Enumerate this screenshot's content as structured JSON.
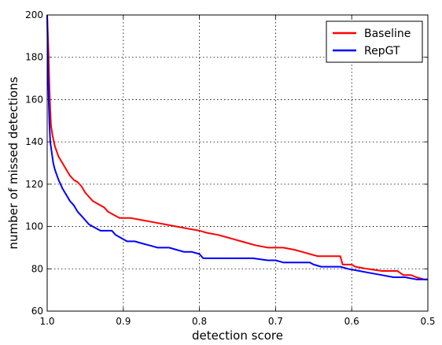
{
  "chart_data": {
    "type": "line",
    "title": "",
    "xlabel": "detection score",
    "ylabel": "number of missed detections",
    "xlim": [
      1.0,
      0.5
    ],
    "ylim": [
      60,
      200
    ],
    "x_reversed": true,
    "grid": true,
    "legend_position": "top-right",
    "xticks": [
      "1.0",
      "0.9",
      "0.8",
      "0.7",
      "0.6",
      "0.5"
    ],
    "xtick_values": [
      1.0,
      0.9,
      0.8,
      0.7,
      0.6,
      0.5
    ],
    "yticks": [
      "60",
      "80",
      "100",
      "120",
      "140",
      "160",
      "180",
      "200"
    ],
    "ytick_values": [
      60,
      80,
      100,
      120,
      140,
      160,
      180,
      200
    ],
    "series": [
      {
        "name": "Baseline",
        "color": "#ff0000",
        "points": [
          [
            1.0,
            200
          ],
          [
            0.998,
            180
          ],
          [
            0.997,
            165
          ],
          [
            0.996,
            155
          ],
          [
            0.995,
            148
          ],
          [
            0.993,
            143
          ],
          [
            0.99,
            138
          ],
          [
            0.985,
            133
          ],
          [
            0.98,
            130
          ],
          [
            0.975,
            127
          ],
          [
            0.97,
            124
          ],
          [
            0.965,
            122
          ],
          [
            0.96,
            121
          ],
          [
            0.955,
            119
          ],
          [
            0.95,
            116
          ],
          [
            0.945,
            114
          ],
          [
            0.94,
            112
          ],
          [
            0.935,
            111
          ],
          [
            0.93,
            110
          ],
          [
            0.925,
            109
          ],
          [
            0.92,
            107
          ],
          [
            0.915,
            106
          ],
          [
            0.91,
            105
          ],
          [
            0.905,
            104
          ],
          [
            0.89,
            104
          ],
          [
            0.875,
            103
          ],
          [
            0.86,
            102
          ],
          [
            0.845,
            101
          ],
          [
            0.83,
            100
          ],
          [
            0.815,
            99
          ],
          [
            0.8,
            98
          ],
          [
            0.79,
            97
          ],
          [
            0.775,
            96
          ],
          [
            0.765,
            95
          ],
          [
            0.755,
            94
          ],
          [
            0.745,
            93
          ],
          [
            0.735,
            92
          ],
          [
            0.725,
            91
          ],
          [
            0.71,
            90
          ],
          [
            0.69,
            90
          ],
          [
            0.675,
            89
          ],
          [
            0.665,
            88
          ],
          [
            0.655,
            87
          ],
          [
            0.645,
            86
          ],
          [
            0.63,
            86
          ],
          [
            0.615,
            86
          ],
          [
            0.612,
            82
          ],
          [
            0.6,
            82
          ],
          [
            0.595,
            81
          ],
          [
            0.58,
            80
          ],
          [
            0.56,
            79
          ],
          [
            0.54,
            79
          ],
          [
            0.532,
            77
          ],
          [
            0.522,
            77
          ],
          [
            0.515,
            76
          ],
          [
            0.505,
            75
          ],
          [
            0.5,
            75
          ]
        ]
      },
      {
        "name": "RepGT",
        "color": "#0000ff",
        "points": [
          [
            1.0,
            200
          ],
          [
            0.999,
            175
          ],
          [
            0.998,
            160
          ],
          [
            0.997,
            148
          ],
          [
            0.996,
            140
          ],
          [
            0.994,
            135
          ],
          [
            0.992,
            130
          ],
          [
            0.99,
            127
          ],
          [
            0.985,
            122
          ],
          [
            0.98,
            118
          ],
          [
            0.975,
            115
          ],
          [
            0.97,
            112
          ],
          [
            0.965,
            110
          ],
          [
            0.96,
            107
          ],
          [
            0.955,
            105
          ],
          [
            0.95,
            103
          ],
          [
            0.945,
            101
          ],
          [
            0.94,
            100
          ],
          [
            0.935,
            99
          ],
          [
            0.93,
            98
          ],
          [
            0.915,
            98
          ],
          [
            0.91,
            96
          ],
          [
            0.905,
            95
          ],
          [
            0.9,
            94
          ],
          [
            0.895,
            93
          ],
          [
            0.885,
            93
          ],
          [
            0.875,
            92
          ],
          [
            0.865,
            91
          ],
          [
            0.855,
            90
          ],
          [
            0.84,
            90
          ],
          [
            0.83,
            89
          ],
          [
            0.82,
            88
          ],
          [
            0.81,
            88
          ],
          [
            0.8,
            87
          ],
          [
            0.795,
            85
          ],
          [
            0.78,
            85
          ],
          [
            0.75,
            85
          ],
          [
            0.73,
            85
          ],
          [
            0.71,
            84
          ],
          [
            0.7,
            84
          ],
          [
            0.69,
            83
          ],
          [
            0.655,
            83
          ],
          [
            0.65,
            82
          ],
          [
            0.64,
            81
          ],
          [
            0.615,
            81
          ],
          [
            0.605,
            80
          ],
          [
            0.59,
            79
          ],
          [
            0.575,
            78
          ],
          [
            0.56,
            77
          ],
          [
            0.545,
            76
          ],
          [
            0.53,
            76
          ],
          [
            0.515,
            75
          ],
          [
            0.5,
            75
          ]
        ]
      }
    ]
  }
}
